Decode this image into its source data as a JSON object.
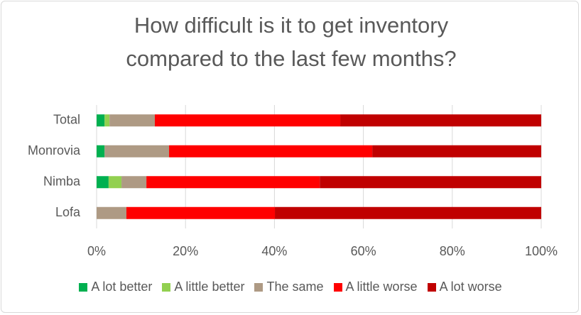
{
  "chart_data": {
    "type": "stacked-bar-horizontal",
    "title": "How difficult is it to get inventory compared to the last few months?",
    "categories": [
      "Total",
      "Monrovia",
      "Nimba",
      "Lofa"
    ],
    "series": [
      {
        "name": "A lot better",
        "color": "#00b050",
        "values": [
          1.8,
          1.8,
          2.7,
          0
        ]
      },
      {
        "name": "A little better",
        "color": "#92d050",
        "values": [
          1.1,
          0,
          2.9,
          0
        ]
      },
      {
        "name": "The same",
        "color": "#ae9a84",
        "values": [
          10.2,
          14.5,
          5.6,
          6.7
        ]
      },
      {
        "name": "A little worse",
        "color": "#ff0000",
        "values": [
          41.7,
          45.7,
          39.0,
          33.4
        ]
      },
      {
        "name": "A lot worse",
        "color": "#c00000",
        "values": [
          45.2,
          38.0,
          49.8,
          59.9
        ]
      }
    ],
    "xlim": [
      0,
      100
    ],
    "xticks": [
      {
        "value": 0,
        "label": "0%"
      },
      {
        "value": 20,
        "label": "20%"
      },
      {
        "value": 40,
        "label": "40%"
      },
      {
        "value": 60,
        "label": "60%"
      },
      {
        "value": 80,
        "label": "80%"
      },
      {
        "value": 100,
        "label": "100%"
      }
    ],
    "grid": true,
    "legend": "bottom"
  }
}
